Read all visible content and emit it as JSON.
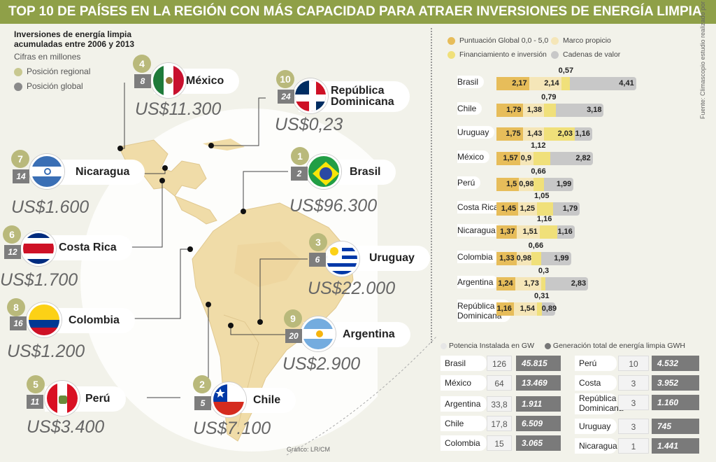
{
  "title": "TOP 10 DE PAÍSES EN LA REGIÓN CON MÁS CAPACIDAD PARA ATRAER  INVERSIONES DE ENERGÍA  LIMPIA",
  "intro": {
    "heading": "Inversiones de energía limpia acumuladas entre 2006 y 2013",
    "units": "Cifras en millones",
    "legend_regional": "Posición regional",
    "legend_global": "Posición global"
  },
  "colors": {
    "header": "#8fa048",
    "regional": "#c8c890",
    "global": "#8a8a8a",
    "score": "#e7bd5a",
    "marco": "#f5e6b8",
    "financiamiento": "#f0e07a",
    "cadenas": "#c8c8c8",
    "map_fill": "#f0dca8"
  },
  "countries": [
    {
      "name": "México",
      "regional": "4",
      "global": "8",
      "amount": "US$11.300",
      "flag": "mexico-flag-icon"
    },
    {
      "name": "República Dominicana",
      "name_l1": "República",
      "name_l2": "Dominicana",
      "regional": "10",
      "global": "24",
      "amount": "US$0,23",
      "flag": "dominican-republic-flag-icon"
    },
    {
      "name": "Nicaragua",
      "regional": "7",
      "global": "14",
      "amount": "US$1.600",
      "flag": "nicaragua-flag-icon"
    },
    {
      "name": "Brasil",
      "regional": "1",
      "global": "2",
      "amount": "US$96.300",
      "flag": "brazil-flag-icon"
    },
    {
      "name": "Costa Rica",
      "regional": "6",
      "global": "12",
      "amount": "US$1.700",
      "flag": "costa-rica-flag-icon"
    },
    {
      "name": "Uruguay",
      "regional": "3",
      "global": "6",
      "amount": "US$22.000",
      "flag": "uruguay-flag-icon"
    },
    {
      "name": "Colombia",
      "regional": "8",
      "global": "16",
      "amount": "US$1.200",
      "flag": "colombia-flag-icon"
    },
    {
      "name": "Argentina",
      "regional": "9",
      "global": "20",
      "amount": "US$2.900",
      "flag": "argentina-flag-icon"
    },
    {
      "name": "Perú",
      "regional": "5",
      "global": "11",
      "amount": "US$3.400",
      "flag": "peru-flag-icon"
    },
    {
      "name": "Chile",
      "regional": "2",
      "global": "5",
      "amount": "US$7.100",
      "flag": "chile-flag-icon"
    }
  ],
  "chart_data": [
    {
      "type": "bar",
      "stacked": true,
      "orientation": "horizontal",
      "categories": [
        "Brasil",
        "Chile",
        "Uruguay",
        "México",
        "Perú",
        "Costa Rica",
        "Nicaragua",
        "Colombia",
        "Argentina",
        "República Dominicana"
      ],
      "series": [
        {
          "name": "Puntuación Global 0,0 - 5,0",
          "labels": [
            "2,17",
            "1,79",
            "1,75",
            "1,57",
            "1,5",
            "1,45",
            "1,37",
            "1,33",
            "1,24",
            "1,16"
          ],
          "values": [
            2.17,
            1.79,
            1.75,
            1.57,
            1.5,
            1.45,
            1.37,
            1.33,
            1.24,
            1.16
          ]
        },
        {
          "name": "Marco propicio",
          "labels": [
            "2,14",
            "1,38",
            "1,43",
            "0,9",
            "0,98",
            "1,25",
            "1,51",
            "0,98",
            "1,73",
            "1,54"
          ],
          "values": [
            2.14,
            1.38,
            1.43,
            0.9,
            0.98,
            1.25,
            1.51,
            0.98,
            1.73,
            1.54
          ]
        },
        {
          "name": "Financiamiento e inversión",
          "labels": [
            "0,57",
            "0,79",
            "2,03",
            "1,12",
            "0,66",
            "1,05",
            "1,16",
            "0,66",
            "0,3",
            "0,31"
          ],
          "values": [
            0.57,
            0.79,
            2.03,
            1.12,
            0.66,
            1.05,
            1.16,
            0.66,
            0.3,
            0.31
          ]
        },
        {
          "name": "Cadenas de valor",
          "labels": [
            "4,41",
            "3,18",
            "1,16",
            "2,82",
            "1,99",
            "1,79",
            "1,16",
            "1,99",
            "2,83",
            "0,89"
          ],
          "values": [
            4.41,
            3.18,
            1.16,
            2.82,
            1.99,
            1.79,
            1.16,
            1.99,
            2.83,
            0.89
          ]
        }
      ]
    },
    {
      "type": "table",
      "legend_gw": "Potencia Instalada en GW",
      "legend_gwh": "Generación total de energía limpia GWH",
      "left_rows": [
        {
          "country": "Brasil",
          "gw": "126",
          "gwh": "45.815"
        },
        {
          "country": "México",
          "gw": "64",
          "gwh": "13.469"
        },
        {
          "country": "Argentina",
          "gw": "33,8",
          "gwh": "1.911"
        },
        {
          "country": "Chile",
          "gw": "17,8",
          "gwh": "6.509"
        },
        {
          "country": "Colombia",
          "gw": "15",
          "gwh": "3.065"
        }
      ],
      "right_rows": [
        {
          "country": "Perú",
          "gw": "10",
          "gwh": "4.532"
        },
        {
          "country": "Costa Rica",
          "gw": "3",
          "gwh": "3.952"
        },
        {
          "country": "República Dominicana",
          "country_l1": "República",
          "country_l2": "Dominicana",
          "gw": "3",
          "gwh": "1.160"
        },
        {
          "country": "Uruguay",
          "gw": "3",
          "gwh": "745"
        },
        {
          "country": "Nicaragua",
          "gw": "1",
          "gwh": "1.441"
        }
      ]
    }
  ],
  "credit": "Gráfico: LR/CM",
  "source": "Fuente: Climascopio estudio realizado por Bloomberg New Energy Finance"
}
